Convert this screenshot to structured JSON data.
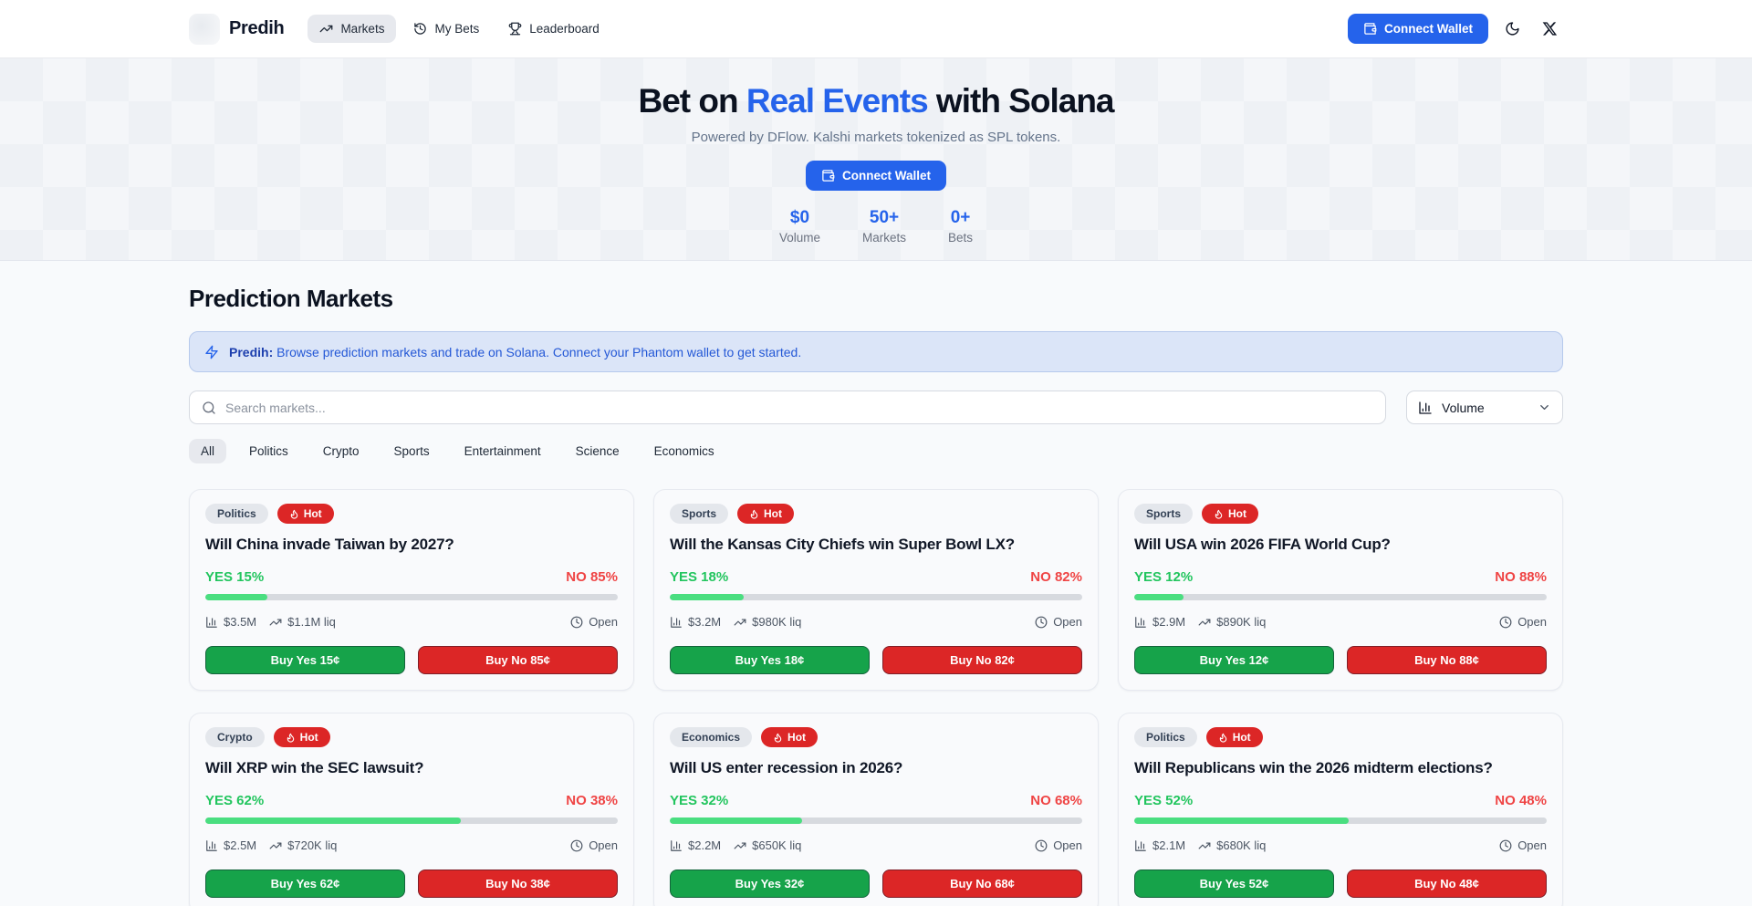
{
  "nav": {
    "brand": "Predih",
    "items": [
      {
        "label": "Markets",
        "icon": "trending-up-icon",
        "active": true
      },
      {
        "label": "My Bets",
        "icon": "history-icon",
        "active": false
      },
      {
        "label": "Leaderboard",
        "icon": "trophy-icon",
        "active": false
      }
    ],
    "connect_wallet_label": "Connect Wallet"
  },
  "hero": {
    "title_pre": "Bet on ",
    "title_highlight": "Real Events",
    "title_post": " with Solana",
    "subtitle": "Powered by DFlow. Kalshi markets tokenized as SPL tokens.",
    "connect_wallet_label": "Connect Wallet",
    "stats": [
      {
        "value": "$0",
        "label": "Volume"
      },
      {
        "value": "50+",
        "label": "Markets"
      },
      {
        "value": "0+",
        "label": "Bets"
      }
    ]
  },
  "markets": {
    "heading": "Prediction Markets",
    "banner": {
      "brand": "Predih:",
      "text": "Browse prediction markets and trade on Solana. Connect your Phantom wallet to get started."
    },
    "search_placeholder": "Search markets...",
    "sort_label": "Volume",
    "categories": [
      {
        "label": "All",
        "active": true
      },
      {
        "label": "Politics",
        "active": false
      },
      {
        "label": "Crypto",
        "active": false
      },
      {
        "label": "Sports",
        "active": false
      },
      {
        "label": "Entertainment",
        "active": false
      },
      {
        "label": "Science",
        "active": false
      },
      {
        "label": "Economics",
        "active": false
      }
    ],
    "cards": [
      {
        "category": "Politics",
        "hot": "Hot",
        "title": "Will China invade Taiwan by 2027?",
        "yes_label": "YES 15%",
        "no_label": "NO 85%",
        "yes_pct": 15,
        "volume": "$3.5M",
        "liquidity": "$1.1M liq",
        "status": "Open",
        "buy_yes": "Buy Yes 15¢",
        "buy_no": "Buy No 85¢"
      },
      {
        "category": "Sports",
        "hot": "Hot",
        "title": "Will the Kansas City Chiefs win Super Bowl LX?",
        "yes_label": "YES 18%",
        "no_label": "NO 82%",
        "yes_pct": 18,
        "volume": "$3.2M",
        "liquidity": "$980K liq",
        "status": "Open",
        "buy_yes": "Buy Yes 18¢",
        "buy_no": "Buy No 82¢"
      },
      {
        "category": "Sports",
        "hot": "Hot",
        "title": "Will USA win 2026 FIFA World Cup?",
        "yes_label": "YES 12%",
        "no_label": "NO 88%",
        "yes_pct": 12,
        "volume": "$2.9M",
        "liquidity": "$890K liq",
        "status": "Open",
        "buy_yes": "Buy Yes 12¢",
        "buy_no": "Buy No 88¢"
      },
      {
        "category": "Crypto",
        "hot": "Hot",
        "title": "Will XRP win the SEC lawsuit?",
        "yes_label": "YES 62%",
        "no_label": "NO 38%",
        "yes_pct": 62,
        "volume": "$2.5M",
        "liquidity": "$720K liq",
        "status": "Open",
        "buy_yes": "Buy Yes 62¢",
        "buy_no": "Buy No 38¢"
      },
      {
        "category": "Economics",
        "hot": "Hot",
        "title": "Will US enter recession in 2026?",
        "yes_label": "YES 32%",
        "no_label": "NO 68%",
        "yes_pct": 32,
        "volume": "$2.2M",
        "liquidity": "$650K liq",
        "status": "Open",
        "buy_yes": "Buy Yes 32¢",
        "buy_no": "Buy No 68¢"
      },
      {
        "category": "Politics",
        "hot": "Hot",
        "title": "Will Republicans win the 2026 midterm elections?",
        "yes_label": "YES 52%",
        "no_label": "NO 48%",
        "yes_pct": 52,
        "volume": "$2.1M",
        "liquidity": "$680K liq",
        "status": "Open",
        "buy_yes": "Buy Yes 52¢",
        "buy_no": "Buy No 48¢"
      }
    ]
  },
  "colors": {
    "accent_blue": "#2563eb",
    "yes_text_green": "#22c55e",
    "no_text_red": "#ef4444",
    "buy_yes_green": "#16a34a",
    "buy_no_red": "#dc2626",
    "hot_badge_red": "#dc2626",
    "progress_green": "#4ade80"
  }
}
